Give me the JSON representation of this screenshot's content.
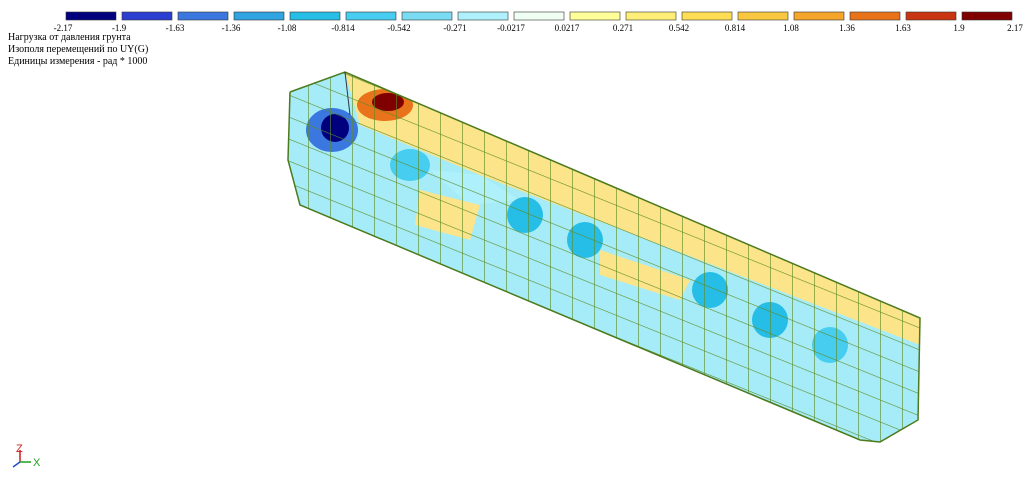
{
  "legend": {
    "labels": [
      "-2.17",
      "-1.9",
      "-1.63",
      "-1.36",
      "-1.08",
      "-0.814",
      "-0.542",
      "-0.271",
      "-0.0217",
      "0.0217",
      "0.271",
      "0.542",
      "0.814",
      "1.08",
      "1.36",
      "1.63",
      "1.9",
      "2.17"
    ],
    "colors": [
      "#00007f",
      "#2a3fd0",
      "#3a78e0",
      "#2fa4e0",
      "#26bde6",
      "#46cdf0",
      "#79dcf2",
      "#aef0fb",
      "#effff4",
      "#ffff99",
      "#ffee77",
      "#ffdd55",
      "#f9c840",
      "#f5a52a",
      "#e8731a",
      "#c83510",
      "#800000"
    ]
  },
  "info": {
    "lines": [
      "Нагрузка от давления грунта",
      "Изополя  перемещений по UY(G)",
      "Единицы измерения  - рад * 1000"
    ]
  },
  "axes": {
    "z": "Z",
    "x": "X"
  }
}
